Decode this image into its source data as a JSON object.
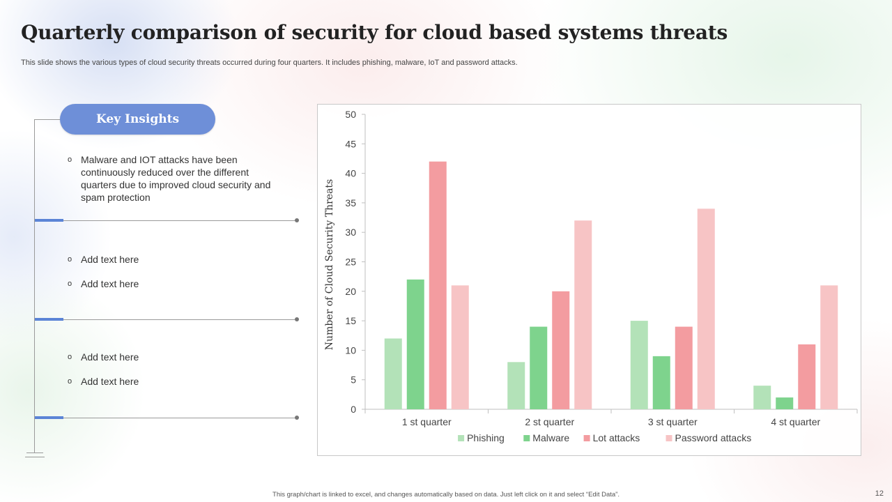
{
  "slide": {
    "title": "Quarterly comparison of security for cloud based systems threats",
    "subtitle": "This slide shows the various types of cloud security threats occurred during four quarters. It includes phishing, malware, IoT and password attacks.",
    "footer": "This graph/chart is linked to excel, and changes automatically based on data. Just left click on it and select “Edit Data”.",
    "page_number": "12"
  },
  "insights": {
    "heading": "Key Insights",
    "bullet_symbol": "o",
    "groups": [
      {
        "items": [
          "Malware and IOT attacks have been continuously reduced over the different quarters due to improved cloud security and spam protection"
        ]
      },
      {
        "items": [
          "Add text here",
          "Add text here"
        ]
      },
      {
        "items": [
          "Add text here",
          "Add text here"
        ]
      }
    ]
  },
  "colors": {
    "accent_blue": "#6e8fd8",
    "phishing": "#b3e2b8",
    "malware": "#7ed38d",
    "lot_attacks": "#f39ca0",
    "password_attacks": "#f7c4c5"
  },
  "chart_data": {
    "type": "bar",
    "ylabel": "Number of Cloud  Security Threats",
    "ylim": [
      0,
      50
    ],
    "yticks": [
      0,
      5,
      10,
      15,
      20,
      25,
      30,
      35,
      40,
      45,
      50
    ],
    "categories": [
      "1 st quarter",
      "2 st quarter",
      "3 st quarter",
      "4 st quarter"
    ],
    "series": [
      {
        "name": "Phishing",
        "color": "#b3e2b8",
        "values": [
          12,
          8,
          15,
          4
        ]
      },
      {
        "name": "Malware",
        "color": "#7ed38d",
        "values": [
          22,
          14,
          9,
          2
        ]
      },
      {
        "name": "Lot attacks",
        "color": "#f39ca0",
        "values": [
          42,
          20,
          14,
          11
        ]
      },
      {
        "name": "Password attacks",
        "color": "#f7c4c5",
        "values": [
          21,
          32,
          34,
          21
        ]
      }
    ],
    "legend_position": "bottom",
    "grid": false
  }
}
